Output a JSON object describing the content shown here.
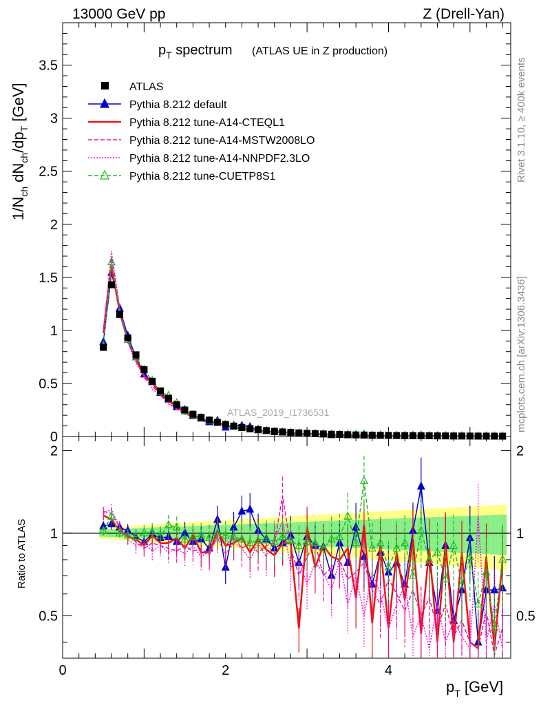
{
  "header": {
    "energy_label": "13000 GeV pp",
    "process_label": "Z (Drell-Yan)"
  },
  "side_text": {
    "rivet": "Rivet 3.1.10, ≥ 400k events",
    "mcplots": "mcplots.cern.ch [arXiv:1306.3436]"
  },
  "chart_data": {
    "type": "line",
    "title_main": "p",
    "title_sub": "T",
    "title_rest": " spectrum",
    "title_paren": "(ATLAS UE in Z production)",
    "analysis_tag": "ATLAS_2019_I1736531",
    "xlabel": "p",
    "xlabel_sub": "T",
    "xlabel_unit": " [GeV]",
    "ylabel_parts": [
      "1/N",
      "ch",
      " dN",
      "ch",
      "/dp",
      "T",
      " [GeV]"
    ],
    "ratio_ylabel": "Ratio to ATLAS",
    "xlim": [
      0,
      5.5
    ],
    "ylim": [
      0,
      3.9
    ],
    "ratio_ylim": [
      0.35,
      2.25
    ],
    "x_ticks": [
      0,
      2,
      4
    ],
    "y_ticks": [
      "0",
      "0.5",
      "1",
      "1.5",
      "2",
      "2.5",
      "3",
      "3.5"
    ],
    "y_tick_values": [
      0,
      0.5,
      1,
      1.5,
      2,
      2.5,
      3,
      3.5
    ],
    "ratio_y_ticks": [
      "0.5",
      "1",
      "2"
    ],
    "ratio_y_tick_values": [
      0.5,
      1,
      2
    ],
    "x": [
      0.5,
      0.6,
      0.7,
      0.8,
      0.9,
      1.0,
      1.1,
      1.2,
      1.3,
      1.4,
      1.5,
      1.6,
      1.7,
      1.8,
      1.9,
      2.0,
      2.1,
      2.2,
      2.3,
      2.4,
      2.5,
      2.6,
      2.7,
      2.8,
      2.9,
      3.0,
      3.1,
      3.2,
      3.3,
      3.4,
      3.5,
      3.6,
      3.7,
      3.8,
      3.9,
      4.0,
      4.1,
      4.2,
      4.3,
      4.4,
      4.5,
      4.6,
      4.7,
      4.8,
      4.9,
      5.0,
      5.1,
      5.2,
      5.3,
      5.4
    ],
    "atlas_values": [
      0.84,
      1.43,
      1.15,
      0.93,
      0.77,
      0.63,
      0.52,
      0.43,
      0.36,
      0.3,
      0.25,
      0.21,
      0.18,
      0.155,
      0.133,
      0.114,
      0.098,
      0.085,
      0.074,
      0.064,
      0.056,
      0.049,
      0.043,
      0.038,
      0.034,
      0.03,
      0.027,
      0.024,
      0.021,
      0.019,
      0.017,
      0.015,
      0.014,
      0.012,
      0.011,
      0.01,
      0.009,
      0.0085,
      0.0078,
      0.0071,
      0.0065,
      0.006,
      0.0055,
      0.005,
      0.0046,
      0.0042,
      0.0039,
      0.0036,
      0.0033,
      0.003
    ],
    "series": [
      {
        "name": "ATLAS",
        "color": "#000000",
        "style": "marker"
      },
      {
        "name": "Pythia 8.212 default",
        "color": "#0000cc",
        "style": "solid-triangle",
        "ratio": [
          1.06,
          1.08,
          1.05,
          1.02,
          0.97,
          0.93,
          0.99,
          0.96,
          0.97,
          0.93,
          1.0,
          0.93,
          0.95,
          0.88,
          1.12,
          0.75,
          1.05,
          1.2,
          1.22,
          1.02,
          0.95,
          0.88,
          0.92,
          0.98,
          0.78,
          0.97,
          0.9,
          0.89,
          0.7,
          0.92,
          0.78,
          1.05,
          0.82,
          0.65,
          0.85,
          0.72,
          0.78,
          0.65,
          1.02,
          1.48,
          0.78,
          0.52,
          0.9,
          0.48,
          0.62,
          0.96,
          0.4,
          0.62,
          0.62,
          0.63
        ]
      },
      {
        "name": "Pythia 8.212 tune-A14-CTEQL1",
        "color": "#ee1111",
        "style": "solid",
        "ratio": [
          1.16,
          1.12,
          1.02,
          0.97,
          0.95,
          0.9,
          0.98,
          0.92,
          0.92,
          0.96,
          0.88,
          0.98,
          0.85,
          0.85,
          1.02,
          0.9,
          0.92,
          0.96,
          0.85,
          0.95,
          0.87,
          0.83,
          0.92,
          0.92,
          0.45,
          1.05,
          0.75,
          0.9,
          0.82,
          0.8,
          0.88,
          0.58,
          1.07,
          0.47,
          0.9,
          0.45,
          0.85,
          0.57,
          0.95,
          0.43,
          0.88,
          0.4,
          0.92,
          0.4,
          0.85,
          0.4,
          0.38,
          0.82,
          0.38,
          0.8
        ]
      },
      {
        "name": "Pythia 8.212 tune-A14-MSTW2008LO",
        "color": "#ee1199",
        "style": "dashed",
        "ratio": [
          1.2,
          1.18,
          1.05,
          0.98,
          0.93,
          0.88,
          0.92,
          0.9,
          0.88,
          0.86,
          0.9,
          0.86,
          0.88,
          0.83,
          0.98,
          0.9,
          0.97,
          0.88,
          0.92,
          0.85,
          0.9,
          0.92,
          1.37,
          0.88,
          0.7,
          0.82,
          0.92,
          0.7,
          0.75,
          0.8,
          0.68,
          0.72,
          0.78,
          0.62,
          0.55,
          0.68,
          0.6,
          0.52,
          0.62,
          0.5,
          0.58,
          0.45,
          0.55,
          0.42,
          0.48,
          0.4,
          0.38,
          0.52,
          0.36,
          0.45
        ]
      },
      {
        "name": "Pythia 8.212 tune-A14-NNPDF2.3LO",
        "color": "#ee11dd",
        "style": "dotted",
        "ratio": [
          1.18,
          1.22,
          1.05,
          0.95,
          0.9,
          0.92,
          0.86,
          0.9,
          0.85,
          0.88,
          0.84,
          0.9,
          0.82,
          0.86,
          0.96,
          0.84,
          0.92,
          0.88,
          0.8,
          0.92,
          0.82,
          0.95,
          1.1,
          0.75,
          0.8,
          0.65,
          0.78,
          0.72,
          0.62,
          0.8,
          0.55,
          0.7,
          0.5,
          0.72,
          0.6,
          0.45,
          0.55,
          0.65,
          0.42,
          0.5,
          0.38,
          0.55,
          0.4,
          0.48,
          0.42,
          0.38,
          1.15,
          0.4,
          0.55,
          0.38
        ]
      },
      {
        "name": "Pythia 8.212 tune-CUETP8S1",
        "color": "#22bb22",
        "style": "dashed-triangle",
        "ratio": [
          1.02,
          1.15,
          1.0,
          0.98,
          0.97,
          1.0,
          1.01,
          0.98,
          1.07,
          1.05,
          0.95,
          0.97,
          0.98,
          0.96,
          1.0,
          0.98,
          0.97,
          0.95,
          0.92,
          0.94,
          0.96,
          0.93,
          0.97,
          0.94,
          0.9,
          0.93,
          0.92,
          0.88,
          0.95,
          0.97,
          1.15,
          0.92,
          1.55,
          0.88,
          0.92,
          0.75,
          0.88,
          0.92,
          0.7,
          1.02,
          0.8,
          0.85,
          0.68,
          0.9,
          0.65,
          0.82,
          0.55,
          0.72,
          0.45,
          0.8
        ]
      }
    ]
  }
}
